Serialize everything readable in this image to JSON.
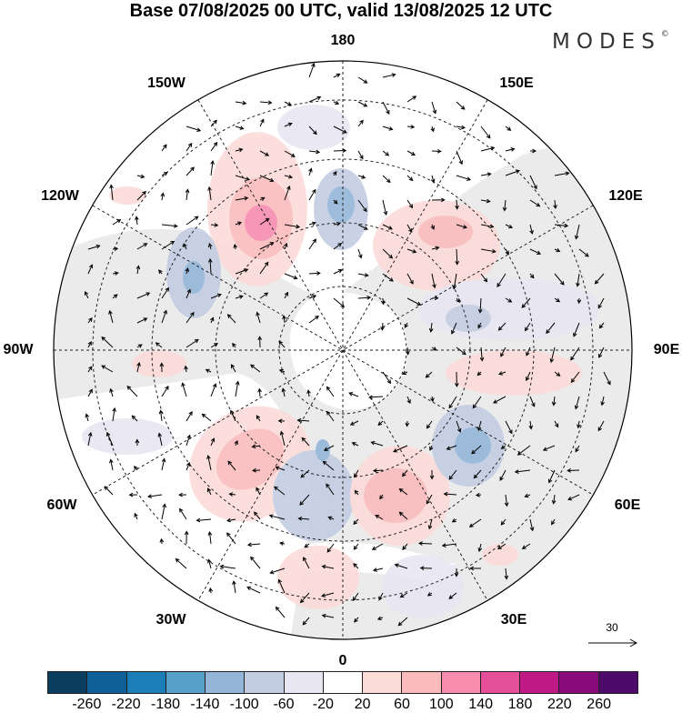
{
  "title": "Base 07/08/2025 00 UTC, valid 13/08/2025 12 UTC",
  "logo": "MODES",
  "logo_mark": "©",
  "longitude_labels": {
    "top": "180",
    "tr1": "150E",
    "tr2": "120E",
    "right": "90E",
    "br2": "60E",
    "br1": "30E",
    "bottom": "0",
    "bl1": "30W",
    "bl2": "60W",
    "left": "90W",
    "tl2": "120W",
    "tl1": "150W"
  },
  "reference_vector": "30",
  "colorbar": {
    "colors": [
      "#0b3d5e",
      "#0e5f97",
      "#1c7eb8",
      "#56a0c9",
      "#93b6d8",
      "#c3cde2",
      "#e8e6f2",
      "#ffffff",
      "#fcdcd9",
      "#fbbbbd",
      "#f78caf",
      "#e64f9a",
      "#c01a86",
      "#8a0b7c",
      "#4d0a6b"
    ],
    "ticks": [
      "-260",
      "-220",
      "-180",
      "-140",
      "-100",
      "-60",
      "-20",
      "20",
      "60",
      "100",
      "140",
      "180",
      "220",
      "260"
    ]
  }
}
